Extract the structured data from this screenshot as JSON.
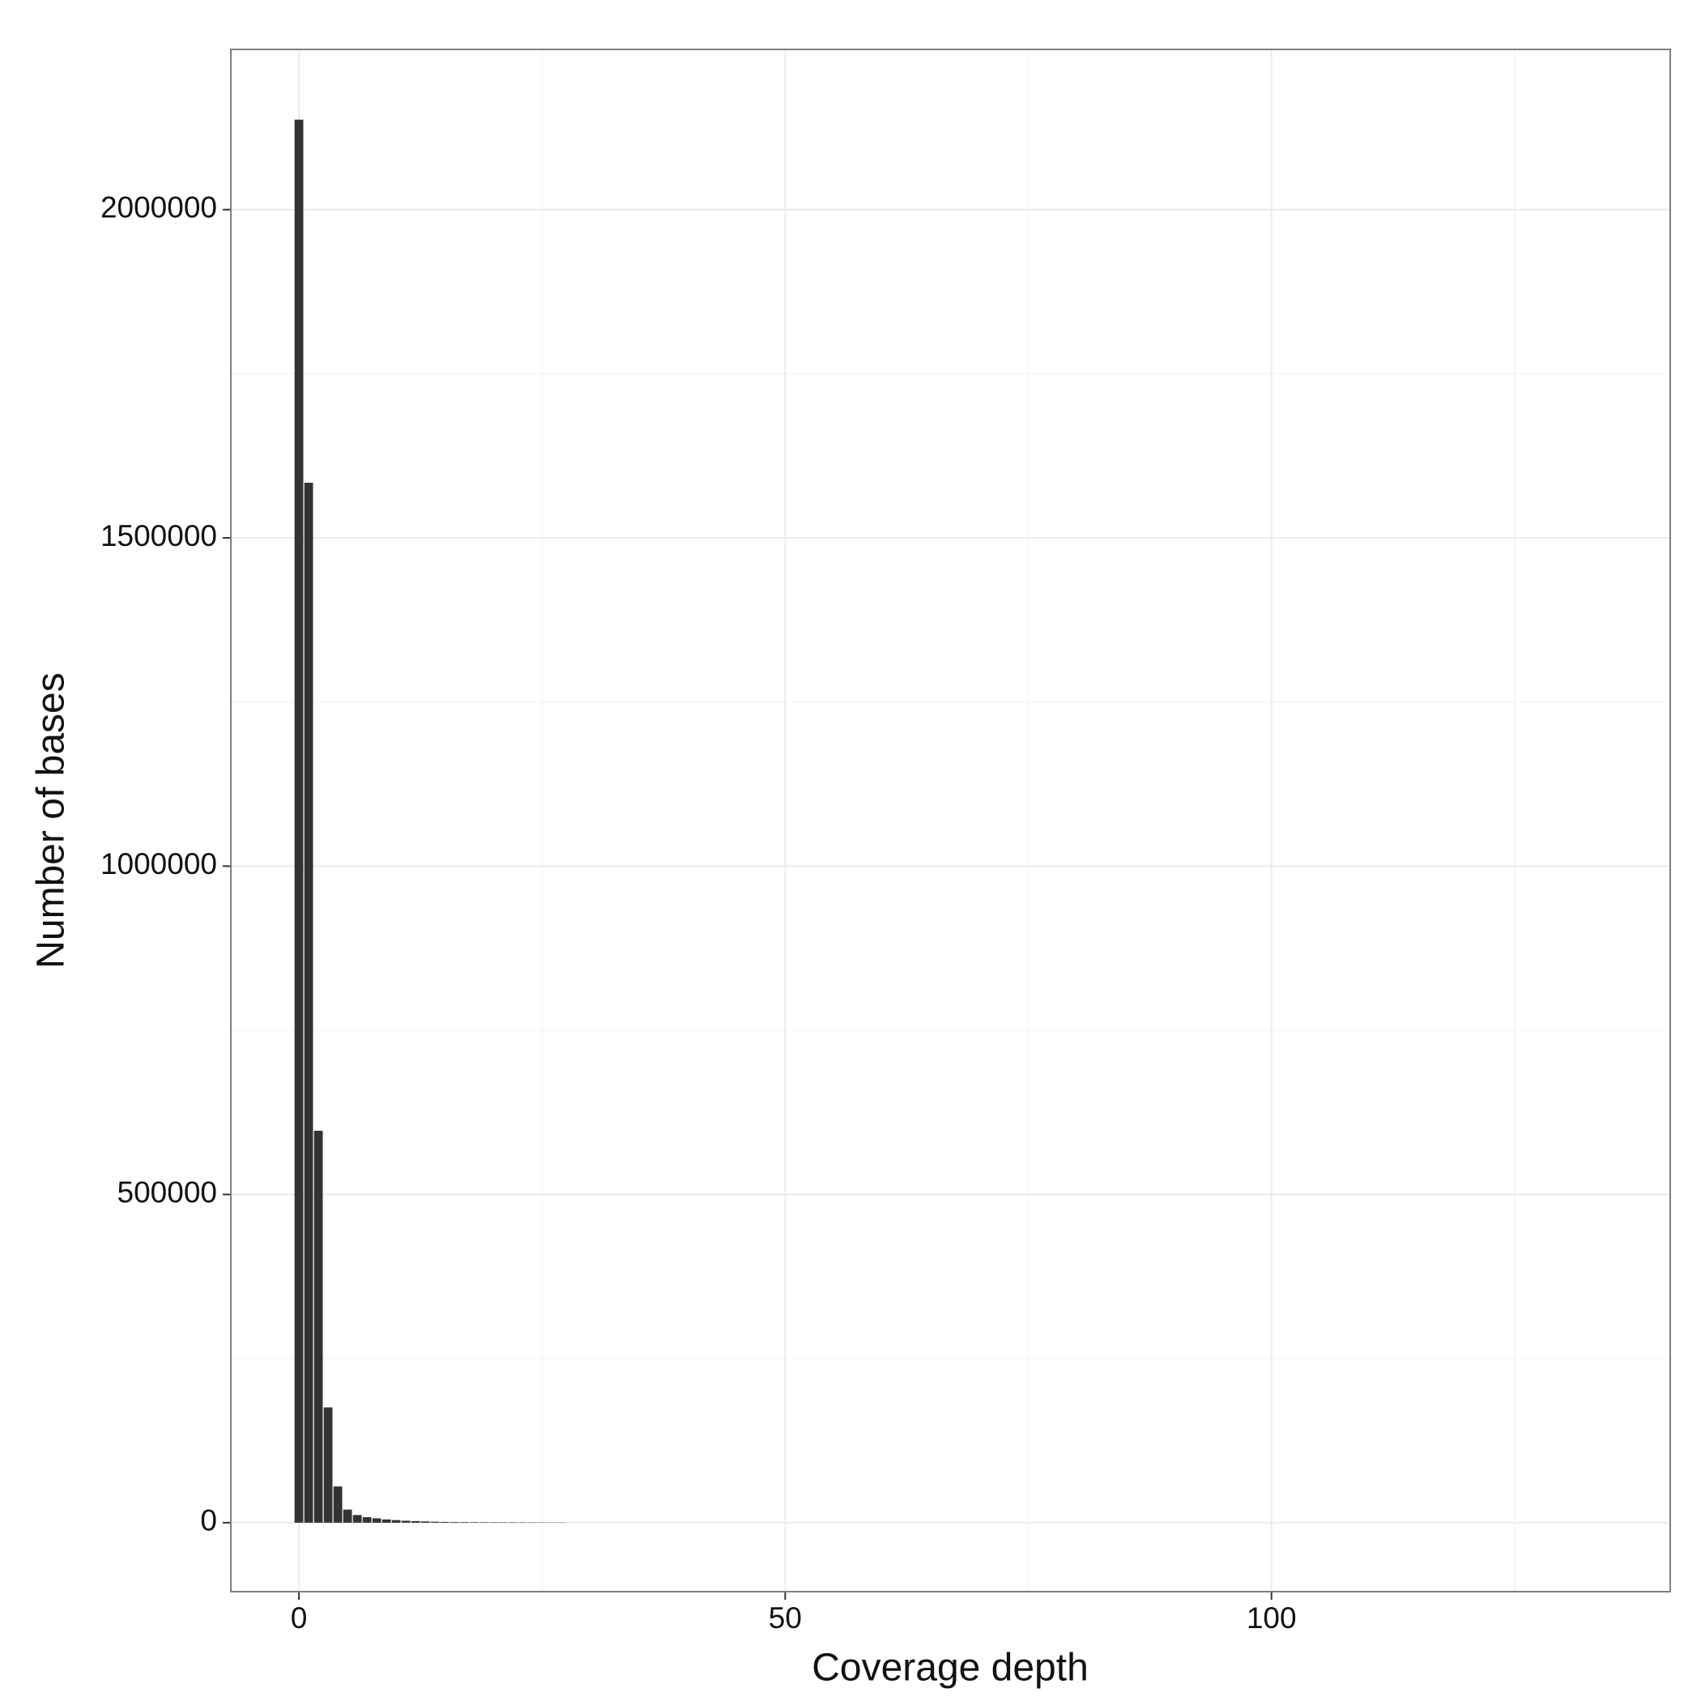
{
  "chart_data": {
    "type": "bar",
    "x_label": "Coverage depth",
    "y_label": "Number of bases",
    "x": [
      0,
      1,
      2,
      3,
      4,
      5,
      6,
      7,
      8,
      9,
      10,
      11,
      12,
      13,
      14,
      15,
      16,
      17,
      18,
      19,
      20,
      21,
      22,
      23,
      24,
      25,
      26,
      27
    ],
    "values": [
      2137000,
      1584000,
      597000,
      175600,
      55200,
      20000,
      11700,
      8400,
      6700,
      5000,
      4000,
      3000,
      2500,
      2000,
      1500,
      1200,
      1000,
      900,
      800,
      700,
      650,
      600,
      550,
      500,
      450,
      400,
      350,
      300
    ],
    "color": "#333333",
    "xlim": [
      -7,
      141
    ],
    "ylim": [
      -105000,
      2244000
    ],
    "xticks": [
      0,
      50,
      100
    ],
    "yticks": [
      0,
      500000,
      1000000,
      1500000,
      2000000
    ],
    "minor_xticks": [
      25,
      75,
      125
    ],
    "minor_yticks": [
      250000,
      750000,
      1250000,
      1750000
    ],
    "grid": true
  }
}
